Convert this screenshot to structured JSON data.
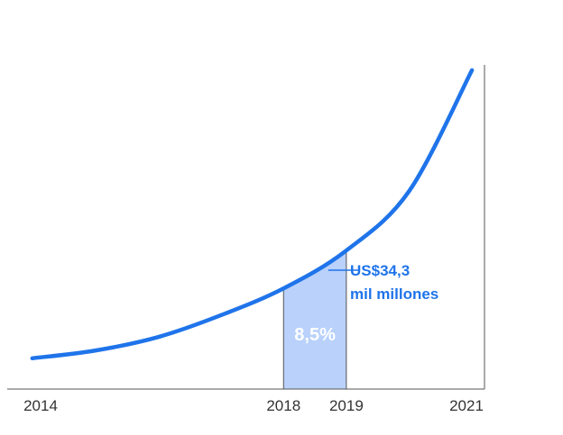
{
  "chart_data": {
    "type": "line",
    "x": [
      2014,
      2015,
      2016,
      2017,
      2018,
      2019,
      2020,
      2021
    ],
    "series": [
      {
        "values": [
          2.2,
          4.5,
          8.5,
          15.0,
          23.0,
          34.3,
          52.0,
          88.0
        ]
      }
    ],
    "x_tick_labels": [
      "2014",
      "2018",
      "2019",
      "2021"
    ],
    "xlim": [
      2013.6,
      2021.2
    ],
    "ylim": [
      0,
      88
    ],
    "grid": false,
    "highlight": {
      "from": 2018,
      "to": 2019,
      "label": "8,5%"
    },
    "annotation": {
      "x": 2019,
      "lines": [
        "US$34,3",
        "mil millones"
      ]
    },
    "colors": {
      "line": "#1f74ea",
      "band": "#b9d1fb",
      "axis": "#555555",
      "annotation": "#1f74ea"
    }
  }
}
